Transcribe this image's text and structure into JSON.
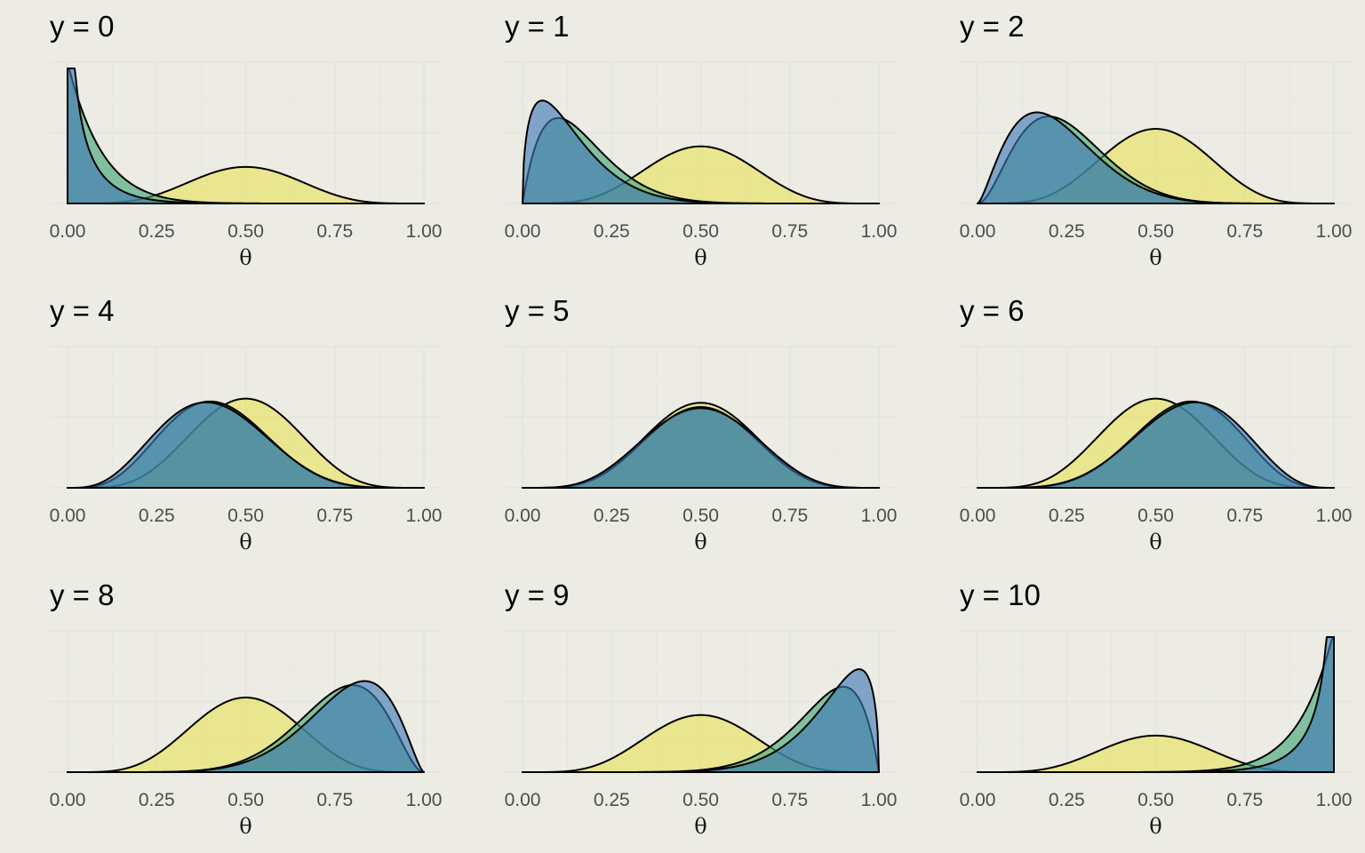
{
  "chart_data": {
    "type": "area",
    "layout": "3x3 facet grid",
    "n": 10,
    "xlabel": "θ",
    "ylabel": "",
    "xlim": [
      0,
      1
    ],
    "x_ticks": [
      "0.00",
      "0.25",
      "0.50",
      "0.75",
      "1.00"
    ],
    "grid": true,
    "legend": "none",
    "y_axis_labels_shown": false,
    "draw_order": [
      "yellow",
      "green",
      "blue"
    ],
    "series_colors": {
      "yellow": "#e8e05a",
      "green": "#3fa474",
      "blue": "#3e78b4"
    },
    "series_kind": {
      "yellow": "Beta(y+1, n−y+1) density scaled by 1/(n+1)",
      "green": "Beta(y+1, n−y+1) density",
      "blue": "Beta(y+0.5, n−y+0.5) density ×(n+1)/... shown with blue fill"
    },
    "panels": [
      {
        "title": "y = 0",
        "y": 0,
        "ymax": 10.0
      },
      {
        "title": "y = 1",
        "y": 1,
        "ymax": 6.4
      },
      {
        "title": "y = 2",
        "y": 2,
        "ymax": 4.9
      },
      {
        "title": "y = 4",
        "y": 4,
        "ymax": 4.1
      },
      {
        "title": "y = 5",
        "y": 5,
        "ymax": 4.3
      },
      {
        "title": "y = 6",
        "y": 6,
        "ymax": 4.1
      },
      {
        "title": "y = 8",
        "y": 8,
        "ymax": 4.9
      },
      {
        "title": "y = 9",
        "y": 9,
        "ymax": 6.4
      },
      {
        "title": "y = 10",
        "y": 10,
        "ymax": 10.0
      }
    ]
  }
}
